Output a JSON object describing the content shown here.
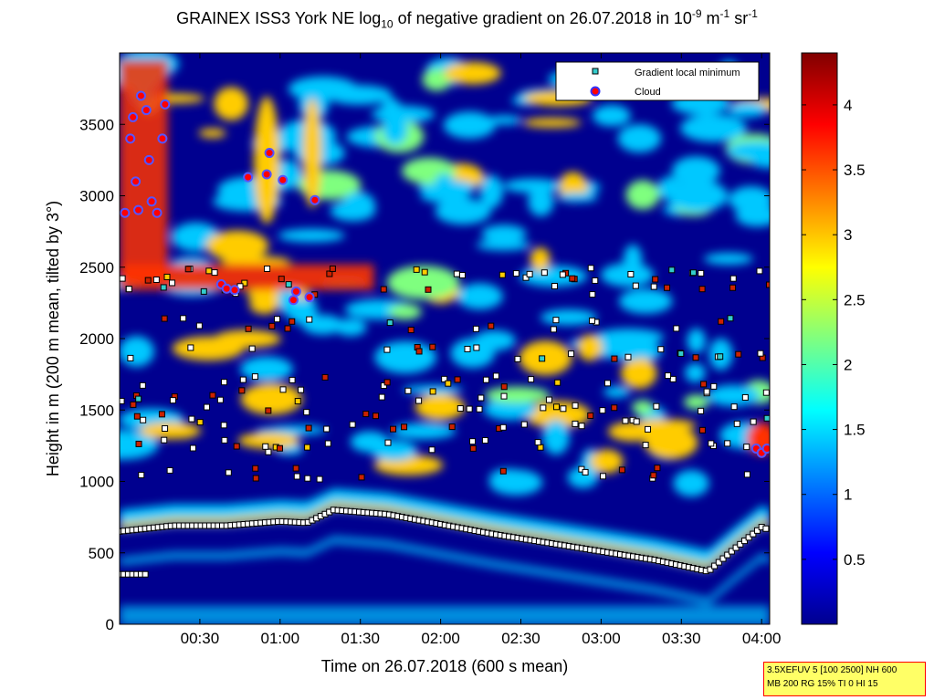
{
  "title": {
    "prefix": "GRAINEX ISS3 York NE log",
    "log_base": "10",
    "middle": " of negative gradient on 26.07.2018 in 10",
    "exp1": "-9",
    "unit1": " m",
    "exp2": "-1",
    "unit2": " sr",
    "exp3": "-1"
  },
  "info_box": {
    "line1": "3.5XEFUV 5 [100 2500] NH 600",
    "line2": "MB 200 RG 15% TI 0 HI 15"
  },
  "chart_data": {
    "type": "heatmap",
    "xlabel": "Time on 26.07.2018 (600 s mean)",
    "ylabel": "Height in m (200 m mean, tilted by 3°)",
    "x_ticks": [
      "00:30",
      "01:00",
      "01:30",
      "02:00",
      "02:30",
      "03:00",
      "03:30",
      "04:00"
    ],
    "x_range_minutes": [
      0,
      243
    ],
    "ylim": [
      0,
      4000
    ],
    "y_ticks": [
      0,
      500,
      1000,
      1500,
      2000,
      2500,
      3000,
      3500
    ],
    "colorbar": {
      "ticks": [
        "0.5",
        "1",
        "1.5",
        "2",
        "2.5",
        "3",
        "3.5",
        "4"
      ],
      "range": [
        0,
        4.4
      ],
      "colormap": "jet"
    },
    "legend": {
      "location": "top-right",
      "entries": [
        {
          "label": "Gradient local minimum",
          "color": "#33cccc",
          "marker": "square"
        },
        {
          "label": "Cloud",
          "color": "#ff0000",
          "marker": "circle",
          "edge": "#3333ff"
        }
      ]
    },
    "background_colors": {
      "low": "#00008f",
      "mid": "#00c8ff",
      "high": "#ffcc00",
      "peak": "#ff3300"
    },
    "boundary_layer_minima": {
      "x_minutes": [
        0,
        20,
        40,
        60,
        70,
        80,
        100,
        120,
        140,
        160,
        180,
        200,
        210,
        220,
        230,
        240,
        243
      ],
      "height_m": [
        650,
        690,
        690,
        720,
        710,
        800,
        770,
        700,
        630,
        570,
        510,
        450,
        410,
        370,
        530,
        680,
        660
      ]
    },
    "upper_minima_heights": [
      2450,
      2350,
      2100,
      1900,
      1700,
      1600,
      1500,
      1400,
      1250,
      1050
    ],
    "cloud_points": [
      {
        "x": 2,
        "y": 2880
      },
      {
        "x": 4,
        "y": 3400
      },
      {
        "x": 5,
        "y": 3550
      },
      {
        "x": 6,
        "y": 3100
      },
      {
        "x": 7,
        "y": 2900
      },
      {
        "x": 8,
        "y": 3700
      },
      {
        "x": 10,
        "y": 3600
      },
      {
        "x": 11,
        "y": 3250
      },
      {
        "x": 12,
        "y": 2960
      },
      {
        "x": 14,
        "y": 2880
      },
      {
        "x": 16,
        "y": 3400
      },
      {
        "x": 17,
        "y": 3640
      },
      {
        "x": 38,
        "y": 2380
      },
      {
        "x": 40,
        "y": 2350
      },
      {
        "x": 43,
        "y": 2340
      },
      {
        "x": 48,
        "y": 3130
      },
      {
        "x": 55,
        "y": 3150
      },
      {
        "x": 56,
        "y": 3300
      },
      {
        "x": 61,
        "y": 3110
      },
      {
        "x": 65,
        "y": 2270
      },
      {
        "x": 66,
        "y": 2330
      },
      {
        "x": 71,
        "y": 2290
      },
      {
        "x": 73,
        "y": 2970
      },
      {
        "x": 238,
        "y": 1230
      },
      {
        "x": 240,
        "y": 1200
      },
      {
        "x": 242,
        "y": 1230
      }
    ]
  }
}
